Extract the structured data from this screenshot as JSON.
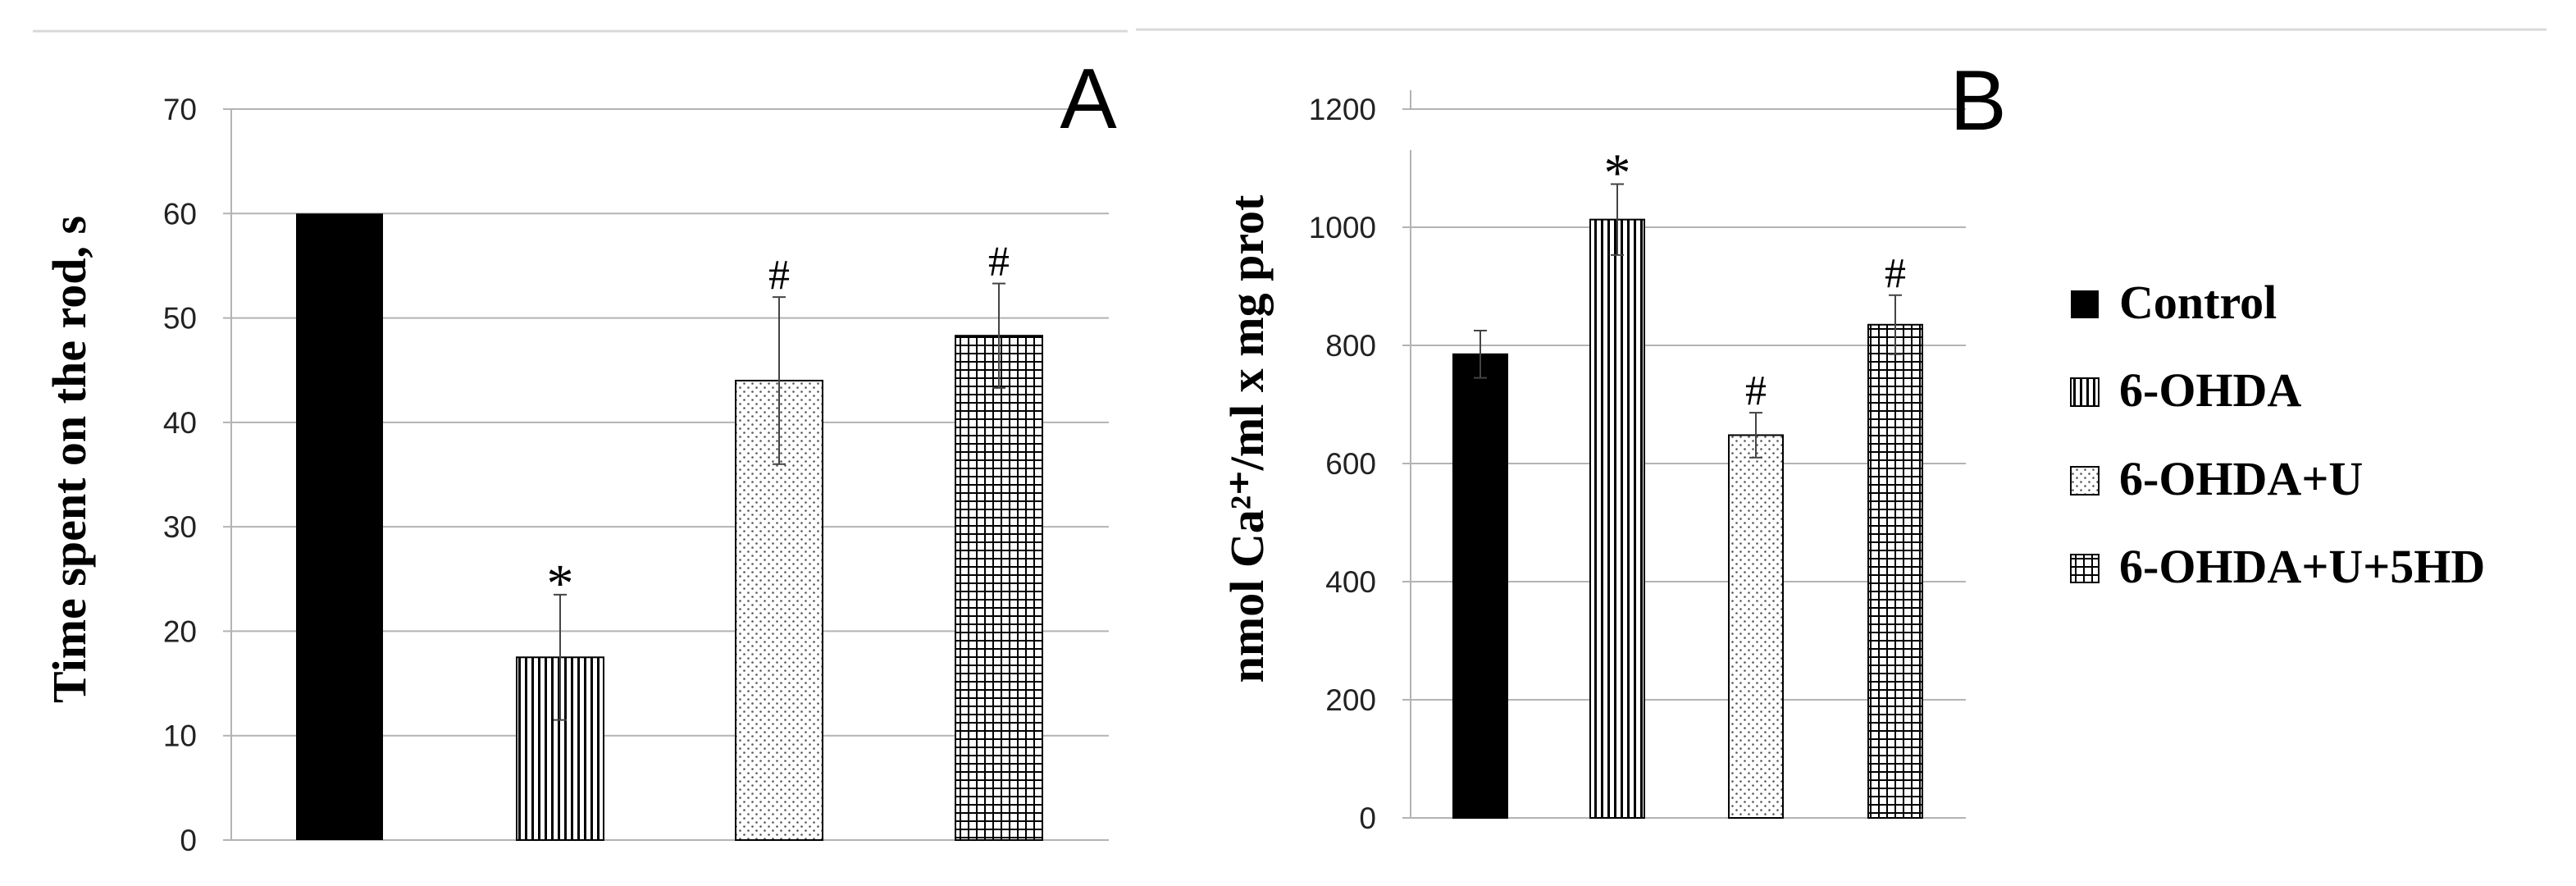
{
  "colors": {
    "bar_solid": "#000000",
    "grid": "#b3b3b3",
    "error": "#444444",
    "top_rule": "#d9d9d9"
  },
  "legend": [
    {
      "label": "Control",
      "pattern": "solid"
    },
    {
      "label": "6-OHDA",
      "pattern": "vertical-lines"
    },
    {
      "label": "6-OHDA+U",
      "pattern": "dots"
    },
    {
      "label": "6-OHDA+U+5HD",
      "pattern": "grid"
    }
  ],
  "chart_data": [
    {
      "type": "bar",
      "panel": "A",
      "ylabel": "Time spent  on the rod, s",
      "ylim": [
        0,
        70
      ],
      "yticks": [
        0,
        10,
        20,
        30,
        40,
        50,
        60,
        70
      ],
      "grid": true,
      "categories": [
        "Control",
        "6-OHDA",
        "6-OHDA+U",
        "6-OHDA+U+5HD"
      ],
      "values": [
        60,
        17.5,
        44,
        48.3
      ],
      "errors": [
        null,
        6,
        8,
        5
      ],
      "significance": [
        "",
        "*",
        "#",
        "#"
      ]
    },
    {
      "type": "bar",
      "panel": "B",
      "ylabel": "nmol Ca²⁺/ml x mg prot",
      "ylim": [
        0,
        1200
      ],
      "yticks": [
        0,
        200,
        400,
        600,
        800,
        1000,
        1200
      ],
      "grid": true,
      "categories": [
        "Control",
        "6-OHDA",
        "6-OHDA+U",
        "6-OHDA+U+5HD"
      ],
      "values": [
        785,
        1013,
        648,
        835
      ],
      "errors": [
        40,
        60,
        38,
        50
      ],
      "significance": [
        "",
        "*",
        "#",
        "#"
      ]
    }
  ]
}
